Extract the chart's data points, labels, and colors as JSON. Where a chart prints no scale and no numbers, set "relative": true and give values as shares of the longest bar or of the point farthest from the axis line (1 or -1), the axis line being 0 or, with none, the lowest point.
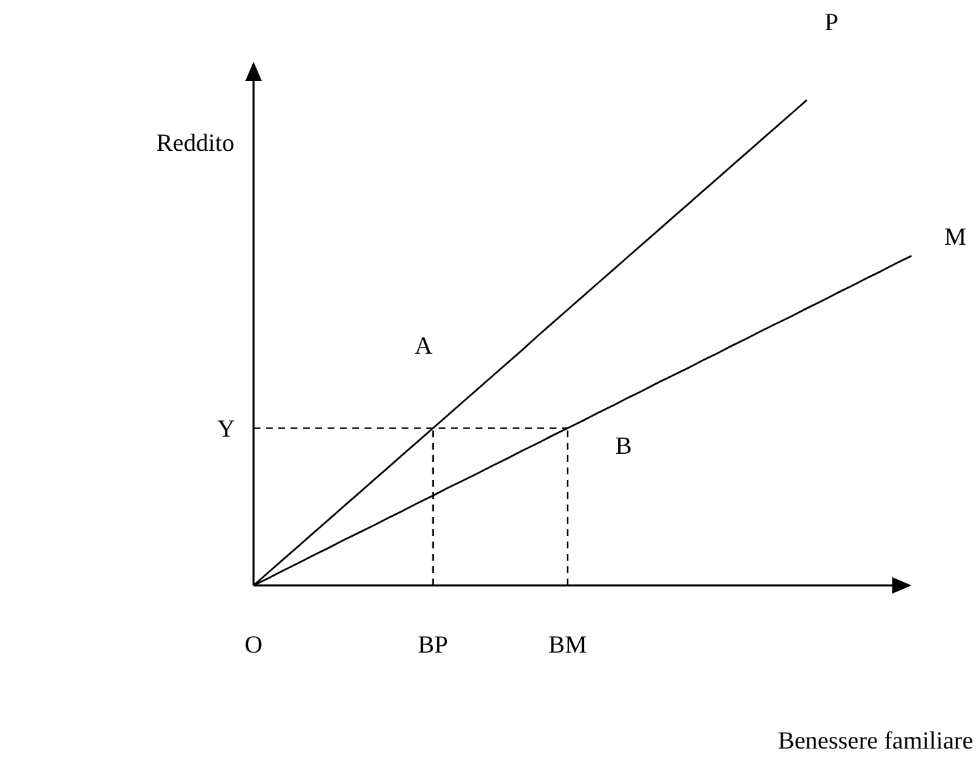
{
  "chart_data": {
    "type": "line",
    "relative": true,
    "xlabel": "Benessere familiare",
    "ylabel": "Reddito",
    "categories": [
      "O",
      null,
      null,
      null,
      null,
      null,
      null,
      null,
      null,
      null,
      null,
      null,
      "BP",
      null,
      null,
      null,
      null,
      null,
      null,
      null,
      null,
      "BM",
      null,
      null,
      null,
      null,
      null,
      null,
      null,
      null,
      null,
      null,
      null,
      null,
      null,
      null,
      null,
      null,
      null,
      null,
      null,
      null,
      null,
      null,
      null
    ],
    "marker": "none",
    "grid": false,
    "legend": false,
    "line_style": "solid",
    "series": [
      {
        "name": "P",
        "color": "#000000",
        "values": [
          0,
          0.027,
          0.054,
          0.081,
          0.108,
          0.135,
          0.162,
          0.189,
          0.216,
          0.243,
          0.27,
          0.297,
          0.324,
          0.351,
          0.378,
          0.405,
          0.432,
          0.459,
          0.486,
          0.514,
          0.541,
          0.568,
          0.595,
          0.622,
          0.649,
          0.676,
          0.703,
          0.73,
          0.757,
          0.784,
          0.811,
          0.838,
          0.865,
          0.892,
          0.919,
          0.946,
          0.973,
          1,
          null,
          null,
          null,
          null,
          null,
          null,
          null
        ]
      },
      {
        "name": "M",
        "color": "#000000",
        "values": [
          0,
          0.015,
          0.031,
          0.046,
          0.062,
          0.077,
          0.093,
          0.108,
          0.123,
          0.139,
          0.154,
          0.17,
          0.185,
          0.201,
          0.216,
          0.231,
          0.247,
          0.262,
          0.278,
          0.293,
          0.309,
          0.324,
          0.339,
          0.355,
          0.37,
          0.386,
          0.401,
          0.417,
          0.432,
          0.447,
          0.463,
          0.478,
          0.494,
          0.509,
          0.525,
          0.54,
          0.555,
          0.571,
          0.586,
          0.602,
          0.617,
          0.633,
          0.648,
          0.664,
          0.679
        ]
      }
    ],
    "ref_lines": [
      {
        "axis": "y",
        "value": 0.324,
        "label": "Y",
        "line_style": "dashed",
        "color": "#000000"
      },
      {
        "axis": "x",
        "value": "BP",
        "line_style": "dashed",
        "color": "#000000"
      },
      {
        "axis": "x",
        "value": "BM",
        "line_style": "dashed",
        "color": "#000000"
      }
    ],
    "annotations": [
      "A",
      "B"
    ]
  }
}
